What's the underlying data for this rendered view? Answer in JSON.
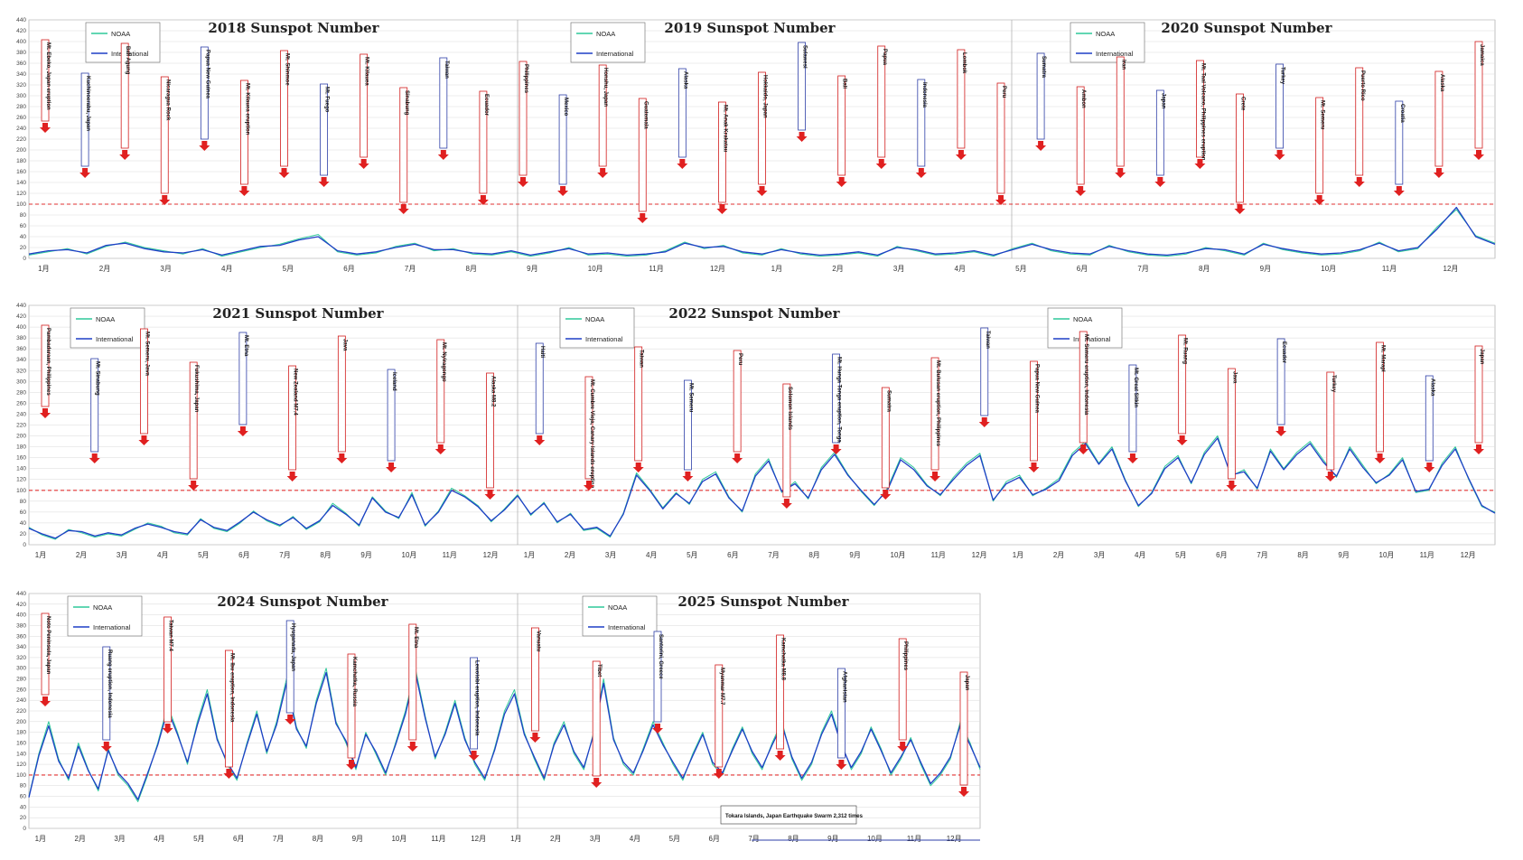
{
  "chart_data": [
    {
      "type": "line",
      "panel": "2018-2020",
      "titles": [
        "2018 Sunspot Number",
        "2019 Sunspot Number",
        "2020 Sunspot Number"
      ],
      "legend": [
        "NOAA",
        "International"
      ],
      "legend_placement": "top-left of each year",
      "ylim": [
        0,
        440
      ],
      "yticks": [
        0,
        20,
        40,
        60,
        80,
        100,
        120,
        140,
        160,
        180,
        200,
        220,
        240,
        260,
        280,
        300,
        320,
        340,
        360,
        380,
        400,
        420,
        440
      ],
      "reference_line": 100,
      "months": [
        "1月",
        "2月",
        "3月",
        "4月",
        "5月",
        "6月",
        "7月",
        "8月",
        "9月",
        "10月",
        "11月",
        "12月",
        "1月",
        "2月",
        "3月",
        "4月",
        "5月",
        "6月",
        "7月",
        "8月",
        "9月",
        "10月",
        "11月",
        "12月"
      ],
      "series": [
        {
          "name": "NOAA",
          "color": "#2ec99a",
          "values": [
            6,
            12,
            18,
            8,
            22,
            30,
            20,
            14,
            8,
            18,
            4,
            12,
            20,
            26,
            36,
            44,
            12,
            6,
            10,
            22,
            28,
            14,
            18,
            8,
            6,
            12,
            4,
            10,
            20,
            6,
            8,
            4,
            6,
            14,
            30,
            18,
            24,
            10,
            6,
            18,
            8,
            4,
            6,
            10,
            4,
            22,
            14,
            6,
            8,
            12,
            4,
            18,
            28,
            14,
            8,
            6,
            24,
            12,
            6,
            4,
            8,
            20,
            14,
            6,
            28,
            16,
            10,
            6,
            8,
            14,
            30,
            12,
            18,
            58,
            90,
            42,
            28
          ]
        },
        {
          "name": "International",
          "color": "#1f3fc6",
          "values": [
            8,
            14,
            16,
            10,
            24,
            28,
            18,
            12,
            10,
            16,
            6,
            14,
            22,
            24,
            34,
            40,
            14,
            8,
            12,
            20,
            26,
            16,
            16,
            10,
            8,
            14,
            6,
            12,
            18,
            8,
            10,
            6,
            8,
            12,
            28,
            20,
            22,
            12,
            8,
            16,
            10,
            6,
            8,
            12,
            6,
            20,
            16,
            8,
            10,
            14,
            6,
            16,
            26,
            16,
            10,
            8,
            22,
            14,
            8,
            6,
            10,
            18,
            16,
            8,
            26,
            18,
            12,
            8,
            10,
            16,
            28,
            14,
            20,
            54,
            94,
            40,
            26
          ]
        }
      ],
      "events": [
        "Mt. Ebeko, Japan eruption",
        "Kuchinoerabu, Japan",
        "Bali Agung",
        "Nicaragua Rock",
        "Papua New Guinea",
        "Mt. Kilauea eruption",
        "Mt. Shinmoe",
        "Mt. Fuego",
        "Mt. Kilauea",
        "Sinabung",
        "Taiwan",
        "Ecuador",
        "Philippines",
        "Mexico",
        "Honshu, Japan",
        "Guatemala",
        "Alaska",
        "Mt. Anak Krakatau",
        "Hokkaido, Japan",
        "Sulawesi",
        "Bali",
        "Papua",
        "Indonesia",
        "Lombok",
        "Peru",
        "Sumatra",
        "Ambon",
        "Iran",
        "Japan",
        "Mt. Taal Volcano, Philippines eruption",
        "Crete",
        "Turkey",
        "Mt. Semeru",
        "Puerto Rico",
        "Croatia",
        "Alaska",
        "Jamaica"
      ]
    },
    {
      "type": "line",
      "panel": "2021-2022",
      "titles": [
        "2021 Sunspot Number",
        "2022 Sunspot Number"
      ],
      "legend": [
        "NOAA",
        "International"
      ],
      "legend_placement": "top-left of each year",
      "ylim": [
        0,
        440
      ],
      "yticks": [
        0,
        20,
        40,
        60,
        80,
        100,
        120,
        140,
        160,
        180,
        200,
        220,
        240,
        260,
        280,
        300,
        320,
        340,
        360,
        380,
        400,
        420,
        440
      ],
      "reference_line": 100,
      "months": [
        "1月",
        "2月",
        "3月",
        "4月",
        "5月",
        "6月",
        "7月",
        "8月",
        "9月",
        "10月",
        "11月",
        "12月",
        "1月",
        "2月",
        "3月",
        "4月",
        "5月",
        "6月",
        "7月",
        "8月",
        "9月",
        "10月",
        "11月",
        "12月",
        "1月",
        "2月",
        "3月",
        "4月",
        "5月",
        "6月",
        "7月",
        "8月",
        "9月",
        "10月",
        "11月",
        "12月"
      ],
      "series": [
        {
          "name": "NOAA",
          "color": "#2ec99a",
          "values": [
            32,
            18,
            10,
            28,
            22,
            14,
            20,
            16,
            28,
            40,
            34,
            22,
            18,
            48,
            30,
            24,
            40,
            62,
            44,
            34,
            52,
            28,
            42,
            76,
            58,
            34,
            88,
            62,
            48,
            96,
            34,
            62,
            104,
            90,
            72,
            42,
            66,
            92,
            54,
            78,
            40,
            58,
            26,
            30,
            14,
            58,
            132,
            102,
            68,
            96,
            74,
            120,
            134,
            88,
            60,
            130,
            158,
            96,
            116,
            84,
            142,
            170,
            130,
            98,
            72,
            104,
            160,
            142,
            110,
            90,
            124,
            150,
            168,
            80,
            116,
            128,
            90,
            104,
            122,
            168,
            190,
            150,
            180,
            120,
            70,
            96,
            144,
            164,
            112,
            170,
            200,
            126,
            138,
            102,
            176,
            140,
            170,
            190,
            156,
            124,
            180,
            146,
            112,
            130,
            160,
            96,
            100,
            150,
            180,
            120,
            70,
            60
          ]
        },
        {
          "name": "International",
          "color": "#1f3fc6",
          "values": [
            30,
            20,
            12,
            26,
            24,
            16,
            22,
            18,
            30,
            38,
            32,
            24,
            20,
            46,
            32,
            26,
            42,
            60,
            46,
            36,
            50,
            30,
            44,
            72,
            56,
            36,
            86,
            60,
            50,
            92,
            36,
            60,
            100,
            88,
            70,
            44,
            64,
            90,
            56,
            76,
            42,
            56,
            28,
            32,
            16,
            56,
            128,
            100,
            66,
            94,
            76,
            116,
            130,
            86,
            62,
            126,
            154,
            98,
            112,
            86,
            138,
            166,
            128,
            100,
            74,
            100,
            156,
            138,
            108,
            92,
            120,
            146,
            164,
            82,
            112,
            124,
            92,
            102,
            118,
            164,
            186,
            148,
            176,
            118,
            72,
            94,
            140,
            160,
            114,
            166,
            196,
            128,
            134,
            104,
            172,
            138,
            166,
            186,
            152,
            126,
            176,
            142,
            114,
            128,
            156,
            98,
            102,
            146,
            176,
            122,
            72,
            58
          ]
        }
      ],
      "events": [
        "Pambadaraan, Philippines",
        "Mt. Sinabung",
        "Mt. Semeru, Java",
        "Fukushima, Japan",
        "Mt. Etna",
        "New Zealand M7.4",
        "Java",
        "Iceland",
        "Mt. Nyiragongo",
        "Alaska M8.2",
        "Haiti",
        "Mt. Cumbre Vieja, Canary Islands eruption",
        "Taiwan",
        "Mt. Semeru",
        "Peru",
        "Solomon Islands",
        "Mt. Hunga Tonga eruption, Tonga",
        "Sumatra",
        "Mt. Bulusan eruption, Philippines",
        "Taiwan",
        "Papua New Guinea",
        "Mt. Semeru eruption, Indonesia",
        "Mt. Great Sitkin",
        "Mt. Ruang",
        "Java",
        "Ecuador",
        "Turkey",
        "Mt. Marapi",
        "Alaska",
        "Japan"
      ]
    },
    {
      "type": "line",
      "panel": "2024-2025",
      "titles": [
        "2024 Sunspot Number",
        "2025 Sunspot Number"
      ],
      "legend": [
        "NOAA",
        "International"
      ],
      "legend_placement": "top-left of each year",
      "ylim": [
        0,
        440
      ],
      "yticks": [
        0,
        20,
        40,
        60,
        80,
        100,
        120,
        140,
        160,
        180,
        200,
        220,
        240,
        260,
        280,
        300,
        320,
        340,
        360,
        380,
        400,
        420,
        440
      ],
      "reference_line": 100,
      "months": [
        "1月",
        "2月",
        "3月",
        "4月",
        "5月",
        "6月",
        "7月",
        "8月",
        "9月",
        "10月",
        "11月",
        "12月",
        "1月",
        "2月",
        "3月",
        "4月",
        "5月",
        "6月",
        "7月",
        "8月",
        "9月",
        "10月",
        "11月",
        "12月"
      ],
      "annotation": "Tokara Islands, Japan Earthquake Swarm 2,312 times",
      "series": [
        {
          "name": "NOAA",
          "color": "#2ec99a",
          "values": [
            60,
            140,
            200,
            130,
            90,
            160,
            110,
            70,
            150,
            100,
            80,
            50,
            100,
            160,
            230,
            180,
            120,
            200,
            260,
            170,
            120,
            90,
            160,
            220,
            140,
            200,
            280,
            190,
            150,
            240,
            300,
            200,
            160,
            110,
            180,
            140,
            100,
            160,
            220,
            300,
            210,
            130,
            180,
            240,
            170,
            120,
            90,
            150,
            220,
            260,
            180,
            130,
            90,
            160,
            200,
            140,
            110,
            180,
            280,
            170,
            120,
            100,
            150,
            200,
            160,
            120,
            90,
            140,
            180,
            120,
            100,
            150,
            190,
            140,
            110,
            160,
            200,
            130,
            90,
            120,
            180,
            220,
            160,
            110,
            140,
            190,
            150,
            100,
            130,
            170,
            120,
            80,
            100,
            130,
            200,
            160,
            110
          ]
        },
        {
          "name": "International",
          "color": "#1f3fc6",
          "values": [
            58,
            136,
            192,
            126,
            94,
            154,
            108,
            74,
            146,
            104,
            84,
            54,
            104,
            156,
            222,
            176,
            124,
            194,
            252,
            166,
            124,
            94,
            156,
            214,
            144,
            194,
            272,
            186,
            154,
            234,
            292,
            196,
            164,
            114,
            176,
            144,
            104,
            156,
            214,
            292,
            206,
            134,
            176,
            234,
            166,
            124,
            94,
            146,
            214,
            252,
            176,
            134,
            94,
            156,
            194,
            144,
            114,
            176,
            272,
            166,
            124,
            104,
            146,
            194,
            156,
            124,
            94,
            136,
            176,
            124,
            104,
            146,
            186,
            144,
            114,
            156,
            194,
            134,
            94,
            124,
            176,
            214,
            156,
            114,
            144,
            186,
            146,
            104,
            134,
            166,
            124,
            84,
            104,
            134,
            194,
            156,
            114
          ]
        }
      ],
      "events": [
        "Noto Peninsula, Japan",
        "Ruang eruption, Indonesia",
        "Taiwan M7.4",
        "Mt. Ibu eruption, Indonesia",
        "Hyuganada, Japan",
        "Kamchatka, Russia",
        "Mt. Etna",
        "Lewotobi eruption, Indonesia",
        "Vanuatu",
        "Tibet",
        "Santorini, Greece",
        "Myanmar M7.7",
        "Kamchatka M8.8",
        "Afghanistan",
        "Philippines",
        "Japan"
      ]
    }
  ]
}
